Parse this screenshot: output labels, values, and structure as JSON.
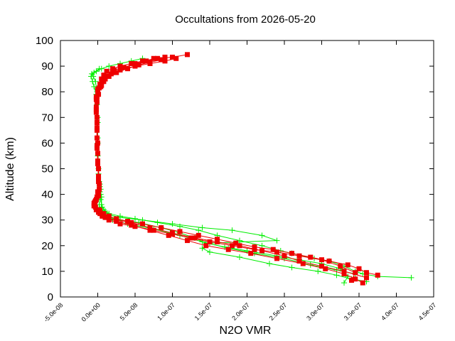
{
  "chart_data": {
    "type": "scatter",
    "title": "Occultations from 2026-05-20",
    "xlabel": "N2O VMR",
    "ylabel": "Altitude (km)",
    "xlim": [
      -5e-08,
      4.5e-07
    ],
    "ylim": [
      0,
      100
    ],
    "xticks": [
      "-5.0e-08",
      "0.0e+00",
      "5.0e-08",
      "1.0e-07",
      "1.5e-07",
      "2.0e-07",
      "2.5e-07",
      "3.0e-07",
      "3.5e-07",
      "4.0e-07",
      "4.5e-07"
    ],
    "yticks": [
      "0",
      "10",
      "20",
      "30",
      "40",
      "50",
      "60",
      "70",
      "80",
      "90",
      "100"
    ],
    "grid": false,
    "colors": {
      "series_green": "#00ee00",
      "series_red": "#ee0000",
      "axes": "#000000"
    },
    "series": [
      {
        "marker": "plus",
        "lines": [
          [
            [
              4.2e-07,
              7.5
            ],
            [
              3.75e-07,
              8
            ],
            [
              3.55e-07,
              9
            ],
            [
              3.45e-07,
              10
            ],
            [
              3.3e-07,
              12
            ],
            [
              3.1e-07,
              14
            ],
            [
              2.9e-07,
              15
            ],
            [
              2.6e-07,
              17
            ],
            [
              2.45e-07,
              18
            ],
            [
              2.2e-07,
              20
            ],
            [
              1.9e-07,
              22
            ],
            [
              1.6e-07,
              24
            ],
            [
              1.35e-07,
              26
            ],
            [
              1.1e-07,
              27.5
            ],
            [
              8e-08,
              29
            ],
            [
              5e-08,
              30.5
            ],
            [
              3e-08,
              31.5
            ],
            [
              1.5e-08,
              32.5
            ],
            [
              8e-09,
              34
            ],
            [
              5e-09,
              36
            ],
            [
              4e-09,
              40
            ],
            [
              2e-09,
              45
            ],
            [
              1e-09,
              50
            ],
            [
              0,
              60
            ],
            [
              0,
              70
            ],
            [
              -1e-09,
              80
            ],
            [
              -3e-09,
              84
            ],
            [
              -6e-09,
              86
            ],
            [
              -8e-09,
              87
            ],
            [
              -2e-09,
              88
            ],
            [
              5e-09,
              89
            ],
            [
              1.5e-08,
              90
            ],
            [
              3e-08,
              91
            ],
            [
              4.5e-08,
              92
            ],
            [
              6e-08,
              93
            ]
          ],
          [
            [
              3.6e-07,
              6
            ],
            [
              3.4e-07,
              7
            ],
            [
              3.2e-07,
              8.5
            ],
            [
              2.95e-07,
              10
            ],
            [
              2.6e-07,
              11.5
            ],
            [
              2.3e-07,
              13
            ],
            [
              1.9e-07,
              15.5
            ],
            [
              1.5e-07,
              17.5
            ],
            [
              1.4e-07,
              19
            ],
            [
              1.5e-07,
              21
            ],
            [
              2.4e-07,
              22
            ],
            [
              2.2e-07,
              24
            ],
            [
              1.8e-07,
              26
            ],
            [
              1.4e-07,
              27
            ],
            [
              1e-07,
              28.5
            ],
            [
              6e-08,
              30
            ],
            [
              3e-08,
              31
            ],
            [
              1.5e-08,
              32
            ],
            [
              1e-08,
              33.5
            ],
            [
              6e-09,
              35
            ],
            [
              4e-09,
              38
            ],
            [
              4e-09,
              42
            ],
            [
              3e-09,
              44
            ]
          ],
          [
            [
              3.3e-07,
              5.5
            ],
            [
              3.35e-07,
              8
            ],
            [
              3.25e-07,
              11
            ],
            [
              3e-07,
              13
            ],
            [
              2.7e-07,
              14.5
            ],
            [
              2.4e-07,
              16
            ],
            [
              2e-07,
              18
            ],
            [
              1.7e-07,
              19.5
            ],
            [
              1.45e-07,
              21
            ],
            [
              1.3e-07,
              23
            ],
            [
              1.1e-07,
              25
            ],
            [
              8.5e-08,
              27
            ],
            [
              5.5e-08,
              29
            ],
            [
              3e-08,
              30
            ],
            [
              1.5e-08,
              31
            ],
            [
              8e-09,
              32.5
            ],
            [
              5e-09,
              35
            ],
            [
              5e-09,
              39
            ],
            [
              3e-09,
              43
            ]
          ],
          [
            [
              3.45e-07,
              9
            ],
            [
              3.2e-07,
              10.5
            ],
            [
              2.85e-07,
              12.5
            ],
            [
              2.5e-07,
              15
            ],
            [
              2.1e-07,
              17
            ],
            [
              1.75e-07,
              19
            ],
            [
              1.4e-07,
              21.5
            ],
            [
              1.1e-07,
              24
            ],
            [
              7.5e-08,
              26.5
            ],
            [
              4e-08,
              28.5
            ],
            [
              2e-08,
              30
            ],
            [
              8e-09,
              31.5
            ],
            [
              4e-09,
              33
            ],
            [
              2e-09,
              36
            ],
            [
              3e-09,
              41
            ],
            [
              1e-09,
              48
            ],
            [
              0,
              55
            ],
            [
              0,
              62
            ],
            [
              0,
              68
            ],
            [
              -1e-09,
              75
            ],
            [
              -2e-09,
              79
            ],
            [
              -5e-09,
              82
            ],
            [
              -7e-09,
              84
            ],
            [
              -9e-09,
              86
            ],
            [
              -5e-09,
              87.5
            ],
            [
              2e-09,
              89
            ]
          ]
        ]
      },
      {
        "marker": "square",
        "lines": [
          [
            [
              3.75e-07,
              8.5
            ],
            [
              3.6e-07,
              9.5
            ],
            [
              3.5e-07,
              11
            ],
            [
              3.35e-07,
              12.5
            ],
            [
              3.1e-07,
              14
            ],
            [
              2.85e-07,
              15.5
            ],
            [
              2.6e-07,
              17
            ],
            [
              2.35e-07,
              18.5
            ],
            [
              2.1e-07,
              19.5
            ],
            [
              1.85e-07,
              21
            ],
            [
              1.6e-07,
              22.5
            ],
            [
              1.35e-07,
              24
            ],
            [
              1.1e-07,
              25.5
            ],
            [
              8.5e-08,
              27
            ],
            [
              6e-08,
              28.5
            ],
            [
              4e-08,
              29.5
            ],
            [
              2.5e-08,
              30.5
            ],
            [
              1.5e-08,
              31.5
            ],
            [
              8e-09,
              32.5
            ],
            [
              3e-09,
              33.5
            ],
            [
              -3e-09,
              35
            ],
            [
              -5e-09,
              36.5
            ],
            [
              -2e-09,
              38
            ],
            [
              1e-09,
              40
            ],
            [
              2e-09,
              44
            ],
            [
              1e-09,
              50
            ],
            [
              0,
              56
            ],
            [
              -1e-09,
              62
            ],
            [
              -1e-09,
              68
            ],
            [
              -2e-09,
              74
            ],
            [
              -2e-09,
              78
            ],
            [
              0,
              81
            ],
            [
              3e-09,
              83
            ],
            [
              5e-09,
              85
            ],
            [
              8e-09,
              86.5
            ],
            [
              1.2e-08,
              88
            ],
            [
              2e-08,
              89
            ],
            [
              3e-08,
              90
            ],
            [
              4.5e-08,
              91
            ],
            [
              6e-08,
              92
            ],
            [
              8e-08,
              93
            ],
            [
              1e-07,
              93.5
            ],
            [
              1.2e-07,
              94.5
            ]
          ],
          [
            [
              3.55e-07,
              5.5
            ],
            [
              3.45e-07,
              7
            ],
            [
              3.3e-07,
              9
            ],
            [
              3.05e-07,
              11
            ],
            [
              2.75e-07,
              13
            ],
            [
              2.4e-07,
              15
            ],
            [
              2.05e-07,
              17
            ],
            [
              1.75e-07,
              18.5
            ],
            [
              1.45e-07,
              20
            ],
            [
              1.2e-07,
              22
            ],
            [
              9.5e-08,
              24
            ],
            [
              7e-08,
              26
            ],
            [
              4.5e-08,
              28
            ],
            [
              2.5e-08,
              29.5
            ],
            [
              1.2e-08,
              31
            ],
            [
              6e-09,
              32
            ],
            [
              2e-09,
              34
            ],
            [
              -4e-09,
              36
            ],
            [
              -1e-09,
              39
            ],
            [
              2e-09,
              42
            ],
            [
              1e-09,
              47
            ],
            [
              0,
              53
            ],
            [
              -1e-09,
              59
            ],
            [
              -1e-09,
              65
            ],
            [
              -2e-09,
              72
            ],
            [
              -2e-09,
              77
            ],
            [
              0,
              80
            ],
            [
              4e-09,
              82
            ],
            [
              8e-09,
              84
            ],
            [
              1.5e-08,
              86
            ],
            [
              2.5e-08,
              87.5
            ],
            [
              4e-08,
              89
            ],
            [
              5.5e-08,
              90.5
            ],
            [
              7e-08,
              91.5
            ],
            [
              8.5e-08,
              92.5
            ],
            [
              9e-08,
              93.5
            ]
          ],
          [
            [
              3.4e-07,
              6.5
            ],
            [
              3.45e-07,
              9.5
            ],
            [
              3.25e-07,
              12
            ],
            [
              3e-07,
              14.5
            ],
            [
              2.7e-07,
              16
            ],
            [
              2.4e-07,
              17.5
            ],
            [
              2.1e-07,
              18.5
            ],
            [
              1.8e-07,
              20
            ],
            [
              1.5e-07,
              21.5
            ],
            [
              1.25e-07,
              23
            ],
            [
              1e-07,
              24.5
            ],
            [
              7.5e-08,
              26
            ],
            [
              5e-08,
              27.5
            ],
            [
              3e-08,
              28.5
            ],
            [
              1.5e-08,
              30
            ],
            [
              6e-09,
              31.5
            ],
            [
              1e-09,
              33
            ],
            [
              -5e-09,
              35.5
            ],
            [
              -3e-09,
              37.5
            ],
            [
              1e-09,
              39.5
            ],
            [
              1e-09,
              45
            ],
            [
              0,
              52
            ],
            [
              0,
              60
            ],
            [
              -1e-09,
              70
            ],
            [
              -1e-09,
              76
            ],
            [
              1e-09,
              79
            ],
            [
              5e-09,
              82.5
            ],
            [
              1e-08,
              85
            ],
            [
              1.8e-08,
              87
            ],
            [
              2.2e-08,
              88.5
            ],
            [
              3.5e-08,
              89.5
            ],
            [
              5e-08,
              91
            ],
            [
              6.5e-08,
              92
            ],
            [
              7.5e-08,
              93
            ]
          ],
          [
            [
              3.6e-07,
              7.5
            ],
            [
              3.3e-07,
              10
            ],
            [
              3e-07,
              12
            ],
            [
              2.7e-07,
              14
            ],
            [
              2.5e-07,
              16
            ],
            [
              2.2e-07,
              18
            ],
            [
              1.9e-07,
              20
            ],
            [
              1.6e-07,
              21.5
            ],
            [
              1.3e-07,
              23
            ],
            [
              1e-07,
              25
            ],
            [
              7e-08,
              27
            ],
            [
              4.5e-08,
              29
            ],
            [
              2.5e-08,
              30
            ],
            [
              1e-08,
              31
            ],
            [
              3e-09,
              32.5
            ],
            [
              -2e-09,
              34
            ],
            [
              -4e-09,
              37
            ],
            [
              0,
              41
            ],
            [
              1e-09,
              46
            ],
            [
              0,
              52
            ],
            [
              -1e-09,
              58
            ],
            [
              -1e-09,
              66
            ],
            [
              -2e-09,
              73
            ],
            [
              -1e-09,
              78
            ],
            [
              2e-09,
              81.5
            ],
            [
              6e-09,
              84
            ],
            [
              1.2e-08,
              86
            ],
            [
              2e-08,
              87.5
            ],
            [
              3e-08,
              88.5
            ],
            [
              5e-08,
              90
            ],
            [
              7e-08,
              91
            ],
            [
              9e-08,
              92
            ],
            [
              1.05e-07,
              93
            ]
          ]
        ]
      }
    ]
  }
}
